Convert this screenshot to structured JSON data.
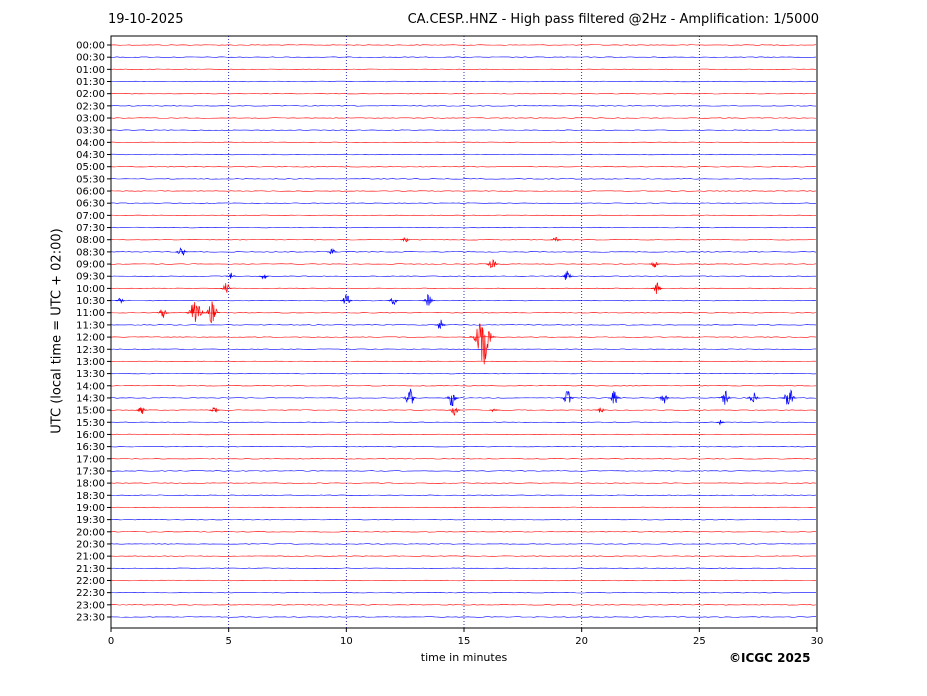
{
  "header": {
    "date": "19-10-2025",
    "title": "CA.CESP..HNZ - High pass filtered @2Hz - Amplification: 1/5000"
  },
  "footer": {
    "copyright": "©ICGC 2025"
  },
  "chart_data": {
    "type": "line",
    "title": "CA.CESP..HNZ - High pass filtered @2Hz - Amplification: 1/5000",
    "xlabel": "time in minutes",
    "ylabel": "UTC (local time = UTC + 02:00)",
    "xlim": [
      0,
      30
    ],
    "x_ticks": [
      0,
      5,
      10,
      15,
      20,
      25,
      30
    ],
    "x_grid_dotted": [
      5,
      10,
      15,
      20,
      25
    ],
    "y_ticks": [
      "00:00",
      "00:30",
      "01:00",
      "01:30",
      "02:00",
      "02:30",
      "03:00",
      "03:30",
      "04:00",
      "04:30",
      "05:00",
      "05:30",
      "06:00",
      "06:30",
      "07:00",
      "07:30",
      "08:00",
      "08:30",
      "09:00",
      "09:30",
      "10:00",
      "10:30",
      "11:00",
      "11:30",
      "12:00",
      "12:30",
      "13:00",
      "13:30",
      "14:00",
      "14:30",
      "15:00",
      "15:30",
      "16:00",
      "16:30",
      "17:00",
      "17:30",
      "18:00",
      "18:30",
      "19:00",
      "19:30",
      "20:00",
      "20:30",
      "21:00",
      "21:30",
      "22:00",
      "22:30",
      "23:00",
      "23:30"
    ],
    "trace_colors": [
      "#ff0000",
      "#0000ff"
    ],
    "events": [
      {
        "trace": "08:00",
        "minute": 12.5,
        "amplitude": 0.3
      },
      {
        "trace": "08:00",
        "minute": 18.9,
        "amplitude": 0.3
      },
      {
        "trace": "08:30",
        "minute": 3.0,
        "amplitude": 0.5
      },
      {
        "trace": "08:30",
        "minute": 9.4,
        "amplitude": 0.3
      },
      {
        "trace": "09:00",
        "minute": 16.2,
        "amplitude": 0.6
      },
      {
        "trace": "09:00",
        "minute": 23.1,
        "amplitude": 0.4
      },
      {
        "trace": "09:30",
        "minute": 5.1,
        "amplitude": 0.3
      },
      {
        "trace": "09:30",
        "minute": 6.5,
        "amplitude": 0.3
      },
      {
        "trace": "09:30",
        "minute": 19.4,
        "amplitude": 0.6
      },
      {
        "trace": "10:00",
        "minute": 4.9,
        "amplitude": 0.5
      },
      {
        "trace": "10:00",
        "minute": 23.2,
        "amplitude": 0.5
      },
      {
        "trace": "10:30",
        "minute": 0.4,
        "amplitude": 0.3
      },
      {
        "trace": "10:30",
        "minute": 10.0,
        "amplitude": 0.6
      },
      {
        "trace": "10:30",
        "minute": 12.0,
        "amplitude": 0.4
      },
      {
        "trace": "10:30",
        "minute": 13.5,
        "amplitude": 0.6
      },
      {
        "trace": "11:00",
        "minute": 2.2,
        "amplitude": 0.5
      },
      {
        "trace": "11:00",
        "minute": 3.6,
        "amplitude": 1.5
      },
      {
        "trace": "11:00",
        "minute": 4.3,
        "amplitude": 1.0
      },
      {
        "trace": "11:30",
        "minute": 14.0,
        "amplitude": 0.5
      },
      {
        "trace": "12:00",
        "minute": 15.8,
        "amplitude": 2.4
      },
      {
        "trace": "14:30",
        "minute": 12.7,
        "amplitude": 0.8
      },
      {
        "trace": "14:30",
        "minute": 14.5,
        "amplitude": 0.8
      },
      {
        "trace": "14:30",
        "minute": 19.4,
        "amplitude": 0.7
      },
      {
        "trace": "14:30",
        "minute": 21.4,
        "amplitude": 0.7
      },
      {
        "trace": "14:30",
        "minute": 23.5,
        "amplitude": 0.5
      },
      {
        "trace": "14:30",
        "minute": 26.1,
        "amplitude": 0.6
      },
      {
        "trace": "14:30",
        "minute": 27.3,
        "amplitude": 0.6
      },
      {
        "trace": "14:30",
        "minute": 28.8,
        "amplitude": 1.0
      },
      {
        "trace": "15:00",
        "minute": 1.3,
        "amplitude": 0.4
      },
      {
        "trace": "15:00",
        "minute": 4.4,
        "amplitude": 0.4
      },
      {
        "trace": "15:00",
        "minute": 14.6,
        "amplitude": 0.5
      },
      {
        "trace": "15:00",
        "minute": 16.3,
        "amplitude": 0.3
      },
      {
        "trace": "15:00",
        "minute": 20.8,
        "amplitude": 0.3
      },
      {
        "trace": "15:30",
        "minute": 25.9,
        "amplitude": 0.2
      }
    ]
  }
}
